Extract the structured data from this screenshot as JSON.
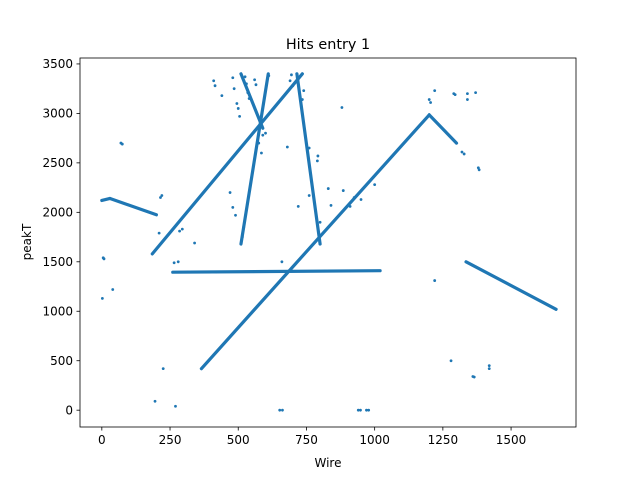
{
  "chart_data": {
    "type": "scatter",
    "title": "Hits entry 1",
    "xlabel": "Wire",
    "ylabel": "peakT",
    "xlim": [
      -80,
      1738
    ],
    "ylim": [
      -170,
      3560
    ],
    "xticks": [
      0,
      250,
      500,
      750,
      1000,
      1250,
      1500
    ],
    "xtick_labels": [
      "0",
      "250",
      "500",
      "750",
      "1000",
      "1250",
      "1500"
    ],
    "yticks": [
      0,
      500,
      1000,
      1500,
      2000,
      2500,
      3000,
      3500
    ],
    "ytick_labels": [
      "0",
      "500",
      "1000",
      "1500",
      "2000",
      "2500",
      "3000",
      "3500"
    ],
    "grid": false,
    "marker_color": "#1f77b4",
    "tracks": [
      {
        "from": [
          0,
          2120
        ],
        "to": [
          30,
          2140
        ]
      },
      {
        "from": [
          30,
          2140
        ],
        "to": [
          200,
          1975
        ]
      },
      {
        "from": [
          185,
          1580
        ],
        "to": [
          735,
          3400
        ]
      },
      {
        "from": [
          365,
          420
        ],
        "to": [
          1200,
          2985
        ]
      },
      {
        "from": [
          1200,
          2985
        ],
        "to": [
          1300,
          2700
        ]
      },
      {
        "from": [
          260,
          1395
        ],
        "to": [
          1020,
          1410
        ]
      },
      {
        "from": [
          1335,
          1500
        ],
        "to": [
          1665,
          1020
        ]
      },
      {
        "from": [
          510,
          1680
        ],
        "to": [
          610,
          3400
        ]
      },
      {
        "from": [
          510,
          3400
        ],
        "to": [
          590,
          2850
        ]
      },
      {
        "from": [
          715,
          3400
        ],
        "to": [
          800,
          1680
        ]
      }
    ],
    "points": [
      {
        "x": 5,
        "y": 1540
      },
      {
        "x": 8,
        "y": 1530
      },
      {
        "x": 2,
        "y": 1130
      },
      {
        "x": 40,
        "y": 1220
      },
      {
        "x": 70,
        "y": 2700
      },
      {
        "x": 75,
        "y": 2690
      },
      {
        "x": 195,
        "y": 90
      },
      {
        "x": 225,
        "y": 420
      },
      {
        "x": 270,
        "y": 40
      },
      {
        "x": 210,
        "y": 1790
      },
      {
        "x": 215,
        "y": 2150
      },
      {
        "x": 220,
        "y": 2170
      },
      {
        "x": 265,
        "y": 1490
      },
      {
        "x": 280,
        "y": 1500
      },
      {
        "x": 285,
        "y": 1810
      },
      {
        "x": 295,
        "y": 1830
      },
      {
        "x": 340,
        "y": 1690
      },
      {
        "x": 410,
        "y": 3330
      },
      {
        "x": 415,
        "y": 3280
      },
      {
        "x": 440,
        "y": 3180
      },
      {
        "x": 480,
        "y": 3360
      },
      {
        "x": 485,
        "y": 3250
      },
      {
        "x": 495,
        "y": 3100
      },
      {
        "x": 500,
        "y": 3050
      },
      {
        "x": 505,
        "y": 2970
      },
      {
        "x": 525,
        "y": 3370
      },
      {
        "x": 530,
        "y": 3300
      },
      {
        "x": 535,
        "y": 3210
      },
      {
        "x": 540,
        "y": 3150
      },
      {
        "x": 560,
        "y": 3340
      },
      {
        "x": 565,
        "y": 3290
      },
      {
        "x": 470,
        "y": 2200
      },
      {
        "x": 480,
        "y": 2050
      },
      {
        "x": 490,
        "y": 1970
      },
      {
        "x": 515,
        "y": 1750
      },
      {
        "x": 520,
        "y": 1850
      },
      {
        "x": 575,
        "y": 2700
      },
      {
        "x": 585,
        "y": 2600
      },
      {
        "x": 590,
        "y": 2780
      },
      {
        "x": 600,
        "y": 2800
      },
      {
        "x": 612,
        "y": 3380
      },
      {
        "x": 660,
        "y": 1500
      },
      {
        "x": 680,
        "y": 2660
      },
      {
        "x": 690,
        "y": 3330
      },
      {
        "x": 695,
        "y": 3390
      },
      {
        "x": 700,
        "y": 3280
      },
      {
        "x": 720,
        "y": 2060
      },
      {
        "x": 735,
        "y": 3140
      },
      {
        "x": 740,
        "y": 3230
      },
      {
        "x": 760,
        "y": 2650
      },
      {
        "x": 760,
        "y": 2170
      },
      {
        "x": 790,
        "y": 2520
      },
      {
        "x": 792,
        "y": 2570
      },
      {
        "x": 800,
        "y": 1900
      },
      {
        "x": 830,
        "y": 2240
      },
      {
        "x": 840,
        "y": 2070
      },
      {
        "x": 880,
        "y": 3060
      },
      {
        "x": 885,
        "y": 2220
      },
      {
        "x": 910,
        "y": 2060
      },
      {
        "x": 925,
        "y": 2150
      },
      {
        "x": 950,
        "y": 2130
      },
      {
        "x": 1000,
        "y": 2280
      },
      {
        "x": 1200,
        "y": 3140
      },
      {
        "x": 1205,
        "y": 3110
      },
      {
        "x": 1220,
        "y": 3230
      },
      {
        "x": 1290,
        "y": 3200
      },
      {
        "x": 1295,
        "y": 3190
      },
      {
        "x": 1340,
        "y": 3200
      },
      {
        "x": 1340,
        "y": 3140
      },
      {
        "x": 1370,
        "y": 3210
      },
      {
        "x": 1320,
        "y": 2610
      },
      {
        "x": 1328,
        "y": 2590
      },
      {
        "x": 1380,
        "y": 2450
      },
      {
        "x": 1383,
        "y": 2430
      },
      {
        "x": 1220,
        "y": 1310
      },
      {
        "x": 1280,
        "y": 500
      },
      {
        "x": 1360,
        "y": 340
      },
      {
        "x": 1365,
        "y": 335
      },
      {
        "x": 1420,
        "y": 450
      },
      {
        "x": 1420,
        "y": 420
      },
      {
        "x": 652,
        "y": 0
      },
      {
        "x": 662,
        "y": 0
      },
      {
        "x": 940,
        "y": 0
      },
      {
        "x": 948,
        "y": 0
      },
      {
        "x": 970,
        "y": 0
      },
      {
        "x": 978,
        "y": 0
      }
    ]
  }
}
